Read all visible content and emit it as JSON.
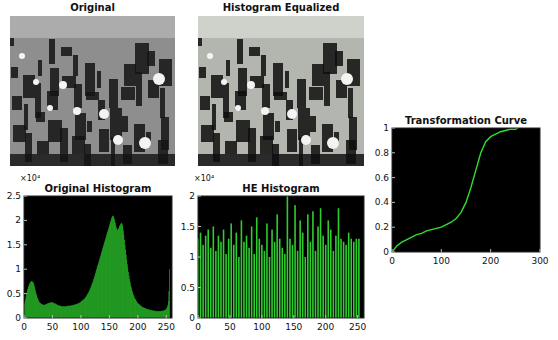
{
  "images": [
    {
      "title": "Original"
    },
    {
      "title": "Histogram Equalized"
    }
  ],
  "chart_data": [
    {
      "type": "histogram",
      "title": "Original Histogram",
      "annotations": [
        "×10⁴"
      ],
      "color": "#2ecc2e",
      "grid": false,
      "xlim": [
        0,
        260
      ],
      "xticks": [
        0,
        50,
        100,
        150,
        200,
        250
      ],
      "ylim": [
        0,
        2.5
      ],
      "yticks": [
        0,
        0.5,
        1,
        1.5,
        2,
        2.5
      ],
      "bins": [
        0,
        1,
        2,
        3,
        4,
        5,
        6,
        7,
        8,
        9,
        10,
        11,
        12,
        13,
        14,
        15,
        16,
        17,
        18,
        19,
        20,
        21,
        22,
        23,
        24,
        25,
        26,
        27,
        28,
        29,
        30,
        31,
        32,
        33,
        34,
        35,
        36,
        37,
        38,
        39,
        40,
        41,
        42,
        43,
        44,
        45,
        46,
        47,
        48,
        49,
        50,
        51,
        52,
        53,
        54,
        55,
        56,
        57,
        58,
        59,
        60,
        61,
        62,
        63,
        64,
        65,
        66,
        67,
        68,
        69,
        70,
        71,
        72,
        73,
        74,
        75,
        76,
        77,
        78,
        79,
        80,
        81,
        82,
        83,
        84,
        85,
        86,
        87,
        88,
        89,
        90,
        91,
        92,
        93,
        94,
        95,
        96,
        97,
        98,
        99,
        100,
        101,
        102,
        103,
        104,
        105,
        106,
        107,
        108,
        109,
        110,
        111,
        112,
        113,
        114,
        115,
        116,
        117,
        118,
        119,
        120,
        121,
        122,
        123,
        124,
        125,
        126,
        127,
        128,
        129,
        130,
        131,
        132,
        133,
        134,
        135,
        136,
        137,
        138,
        139,
        140,
        141,
        142,
        143,
        144,
        145,
        146,
        147,
        148,
        149,
        150,
        151,
        152,
        153,
        154,
        155,
        156,
        157,
        158,
        159,
        160,
        161,
        162,
        163,
        164,
        165,
        166,
        167,
        168,
        169,
        170,
        171,
        172,
        173,
        174,
        175,
        176,
        177,
        178,
        179,
        180,
        181,
        182,
        183,
        184,
        185,
        186,
        187,
        188,
        189,
        190,
        191,
        192,
        193,
        194,
        195,
        196,
        197,
        198,
        199,
        200,
        201,
        202,
        203,
        204,
        205,
        206,
        207,
        208,
        209,
        210,
        211,
        212,
        213,
        214,
        215,
        216,
        217,
        218,
        219,
        220,
        221,
        222,
        223,
        224,
        225,
        226,
        227,
        228,
        229,
        230,
        231,
        232,
        233,
        234,
        235,
        236,
        237,
        238,
        239,
        240,
        241,
        242,
        243,
        244,
        245,
        246,
        247,
        248,
        249,
        250,
        251,
        252,
        253,
        254,
        255,
        256
      ],
      "values": [
        0.28,
        0.32,
        0.38,
        0.44,
        0.5,
        0.55,
        0.6,
        0.64,
        0.67,
        0.7,
        0.72,
        0.74,
        0.75,
        0.76,
        0.75,
        0.74,
        0.72,
        0.69,
        0.65,
        0.6,
        0.55,
        0.5,
        0.46,
        0.42,
        0.39,
        0.36,
        0.34,
        0.32,
        0.31,
        0.3,
        0.29,
        0.28,
        0.28,
        0.27,
        0.27,
        0.27,
        0.27,
        0.28,
        0.28,
        0.29,
        0.29,
        0.3,
        0.3,
        0.31,
        0.31,
        0.31,
        0.32,
        0.32,
        0.32,
        0.32,
        0.32,
        0.31,
        0.31,
        0.3,
        0.3,
        0.29,
        0.28,
        0.28,
        0.27,
        0.27,
        0.26,
        0.26,
        0.25,
        0.25,
        0.25,
        0.24,
        0.24,
        0.24,
        0.24,
        0.24,
        0.24,
        0.24,
        0.24,
        0.24,
        0.24,
        0.25,
        0.25,
        0.25,
        0.25,
        0.25,
        0.25,
        0.25,
        0.26,
        0.26,
        0.26,
        0.26,
        0.27,
        0.27,
        0.27,
        0.28,
        0.28,
        0.28,
        0.29,
        0.29,
        0.3,
        0.3,
        0.31,
        0.31,
        0.32,
        0.33,
        0.34,
        0.35,
        0.36,
        0.37,
        0.38,
        0.39,
        0.4,
        0.42,
        0.43,
        0.45,
        0.47,
        0.49,
        0.51,
        0.53,
        0.55,
        0.58,
        0.61,
        0.64,
        0.67,
        0.7,
        0.73,
        0.76,
        0.8,
        0.84,
        0.88,
        0.92,
        0.96,
        1.0,
        1.04,
        1.08,
        1.12,
        1.16,
        1.2,
        1.24,
        1.28,
        1.32,
        1.36,
        1.4,
        1.44,
        1.48,
        1.52,
        1.56,
        1.6,
        1.64,
        1.68,
        1.72,
        1.76,
        1.8,
        1.84,
        1.88,
        1.92,
        1.96,
        2.0,
        2.04,
        2.07,
        2.09,
        2.1,
        2.08,
        2.04,
        2.0,
        1.95,
        1.9,
        1.85,
        1.82,
        1.8,
        1.82,
        1.85,
        1.88,
        1.9,
        1.92,
        1.94,
        1.95,
        1.93,
        1.88,
        1.8,
        1.7,
        1.6,
        1.5,
        1.4,
        1.3,
        1.2,
        1.1,
        1.02,
        0.94,
        0.87,
        0.8,
        0.74,
        0.68,
        0.63,
        0.58,
        0.54,
        0.5,
        0.47,
        0.44,
        0.41,
        0.39,
        0.37,
        0.35,
        0.33,
        0.31,
        0.3,
        0.29,
        0.28,
        0.27,
        0.26,
        0.25,
        0.24,
        0.23,
        0.22,
        0.22,
        0.21,
        0.21,
        0.2,
        0.2,
        0.19,
        0.19,
        0.18,
        0.18,
        0.18,
        0.17,
        0.17,
        0.17,
        0.16,
        0.16,
        0.16,
        0.16,
        0.15,
        0.15,
        0.15,
        0.15,
        0.15,
        0.14,
        0.14,
        0.14,
        0.14,
        0.14,
        0.14,
        0.14,
        0.14,
        0.14,
        0.14,
        0.14,
        0.15,
        0.15,
        0.15,
        0.15,
        0.16,
        0.16,
        0.17,
        0.18,
        0.2,
        0.22,
        0.26,
        0.35,
        0.55,
        1.0
      ]
    },
    {
      "type": "bar",
      "title": "HE Histogram",
      "annotations": [
        "×10⁴"
      ],
      "color": "#2ecc2e",
      "grid": false,
      "xlim": [
        0,
        260
      ],
      "xticks": [
        0,
        50,
        100,
        150,
        200,
        250
      ],
      "ylim": [
        0,
        2
      ],
      "yticks": [
        0,
        0.5,
        1,
        1.5,
        2
      ],
      "x": [
        0,
        4,
        8,
        12,
        16,
        20,
        24,
        28,
        32,
        36,
        40,
        44,
        48,
        52,
        56,
        60,
        64,
        68,
        72,
        76,
        80,
        84,
        88,
        92,
        96,
        100,
        104,
        108,
        112,
        116,
        120,
        124,
        128,
        132,
        136,
        140,
        144,
        148,
        152,
        156,
        160,
        164,
        168,
        172,
        176,
        180,
        184,
        188,
        192,
        196,
        200,
        204,
        208,
        212,
        216,
        220,
        224,
        228,
        232,
        236,
        240,
        244,
        248,
        252
      ],
      "values": [
        1.3,
        1.4,
        1.2,
        1.35,
        1.45,
        1.15,
        1.5,
        1.1,
        1.35,
        1.25,
        1.45,
        1.05,
        1.3,
        1.55,
        1.2,
        1.4,
        1.0,
        1.6,
        1.25,
        1.35,
        1.15,
        1.5,
        1.05,
        1.65,
        1.3,
        1.2,
        1.1,
        1.55,
        1.0,
        1.45,
        1.25,
        1.7,
        1.3,
        1.15,
        1.05,
        2.0,
        1.3,
        1.2,
        1.85,
        1.1,
        1.6,
        1.4,
        1.0,
        1.7,
        1.25,
        1.75,
        1.1,
        1.5,
        1.8,
        1.35,
        1.2,
        1.6,
        1.45,
        1.1,
        1.35,
        1.8,
        1.3,
        1.25,
        1.2,
        1.4,
        1.3,
        1.25,
        1.3,
        1.3
      ]
    },
    {
      "type": "line",
      "title": "Transformation Curve",
      "color": "#2ee02e",
      "grid": false,
      "xlim": [
        0,
        300
      ],
      "xticks": [
        0,
        100,
        200,
        300
      ],
      "ylim": [
        0,
        1
      ],
      "yticks": [
        0,
        0.2,
        0.4,
        0.6,
        0.8,
        1
      ],
      "x": [
        0,
        10,
        20,
        30,
        40,
        50,
        60,
        70,
        80,
        90,
        100,
        110,
        120,
        130,
        140,
        150,
        160,
        170,
        180,
        190,
        200,
        210,
        220,
        230,
        240,
        250,
        255
      ],
      "values": [
        0,
        0.05,
        0.08,
        0.1,
        0.12,
        0.14,
        0.15,
        0.17,
        0.18,
        0.19,
        0.2,
        0.22,
        0.24,
        0.27,
        0.32,
        0.4,
        0.52,
        0.66,
        0.8,
        0.89,
        0.93,
        0.95,
        0.97,
        0.98,
        0.99,
        0.99,
        1
      ]
    }
  ]
}
